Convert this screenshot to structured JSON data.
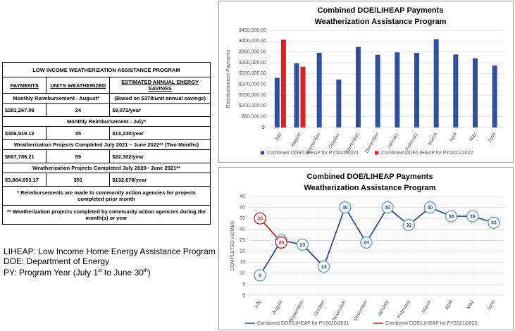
{
  "table": {
    "title": "LOW INCOME WEATHERIZATION ASSISTANCE PROGRAM",
    "headers": [
      "PAYMENTS",
      "UNITS WEATHERIZED",
      "ESTIMATED ANNUAL ENERGY SAVINGS"
    ],
    "sections": [
      {
        "label": "Monthly Reimbursement - August*",
        "note": "(Based on $378/unit annual savings)",
        "values": [
          "$281,267.09",
          "24",
          "$9,072/year"
        ]
      },
      {
        "label": "Monthly Reimbursement - July*",
        "values": [
          "$406,519.12",
          "35",
          "$13,230/year"
        ]
      },
      {
        "label": "Weatherization Projects Completed July 2021 – June 2022** (Two Months)",
        "values": [
          "$687,786.21",
          "59",
          "$22,302/year"
        ]
      },
      {
        "label": "Weatherization Projects Completed July 2020– June 2021**",
        "values": [
          "$3,864,653.17",
          "351",
          "$132,678/year"
        ]
      }
    ],
    "footnotes": [
      "* Reimbursements are made to community action agencies for projects completed prior month",
      "** Weatherization projects completed by community action agencies during the month(s) or year"
    ]
  },
  "glossary": [
    "LIHEAP: Low Income Home Energy Assistance Program",
    "DOE: Department of Energy"
  ],
  "glossary_py": [
    "PY: Program Year (July 1",
    "st",
    " to June 30",
    "th",
    ")"
  ],
  "chart_data": [
    {
      "type": "bar",
      "title": "Combined DOE/LIHEAP Payments",
      "subtitle": "Weatherization Assistance Program",
      "y_label": "Reimbursement Payments",
      "categories": [
        "July",
        "August",
        "September",
        "October",
        "November",
        "December",
        "January",
        "February",
        "March",
        "April",
        "May",
        "June"
      ],
      "series": [
        {
          "name": "Combined DOE/LIHEAP for PY2020/2021",
          "color": "#2f4f9f",
          "values": [
            230000,
            297000,
            346000,
            222000,
            373000,
            337000,
            348000,
            345000,
            409000,
            338000,
            320000,
            287000
          ]
        },
        {
          "name": "Combined DOE/LIHEAP for PY2021/2022",
          "color": "#e01e1e",
          "values": [
            406519.12,
            281267.09,
            null,
            null,
            null,
            null,
            null,
            null,
            null,
            null,
            null,
            null
          ]
        }
      ],
      "ylim": [
        0,
        450000
      ],
      "yticks": [
        {
          "value": 0,
          "label": "$-"
        },
        {
          "value": 50000,
          "label": "$50,000.00"
        },
        {
          "value": 100000,
          "label": "$100,000.00"
        },
        {
          "value": 150000,
          "label": "$150,000.00"
        },
        {
          "value": 200000,
          "label": "$200,000.00"
        },
        {
          "value": 250000,
          "label": "$250,000.00"
        },
        {
          "value": 300000,
          "label": "$300,000.00"
        },
        {
          "value": 350000,
          "label": "$350,000.00"
        },
        {
          "value": 400000,
          "label": "$400,000.00"
        },
        {
          "value": 450000,
          "label": "$450,000.00"
        }
      ],
      "grid": true
    },
    {
      "type": "line",
      "title": "Combined DOE/LIHEAP Payments",
      "subtitle": "Weatherization Assistance Program",
      "y_label": "COMPLETED HOMES",
      "categories": [
        "July",
        "August",
        "September",
        "October",
        "November",
        "December",
        "January",
        "February",
        "March",
        "April",
        "May",
        "June"
      ],
      "series": [
        {
          "name": "Combined DOE/LIHEAP for PY2020/2021",
          "color": "#2e4d8f",
          "values": [
            9,
            25,
            23,
            13,
            40,
            24,
            40,
            32,
            40,
            36,
            36,
            33
          ]
        },
        {
          "name": "Combined DOE/LIHEAP for PY2021/2022",
          "color": "#d42020",
          "values": [
            35,
            24,
            null,
            null,
            null,
            null,
            null,
            null,
            null,
            null,
            null,
            null
          ]
        }
      ],
      "ylim": [
        0,
        45
      ],
      "yticks": [
        0,
        5,
        10,
        15,
        20,
        25,
        30,
        35,
        40,
        45
      ],
      "grid": true
    }
  ]
}
